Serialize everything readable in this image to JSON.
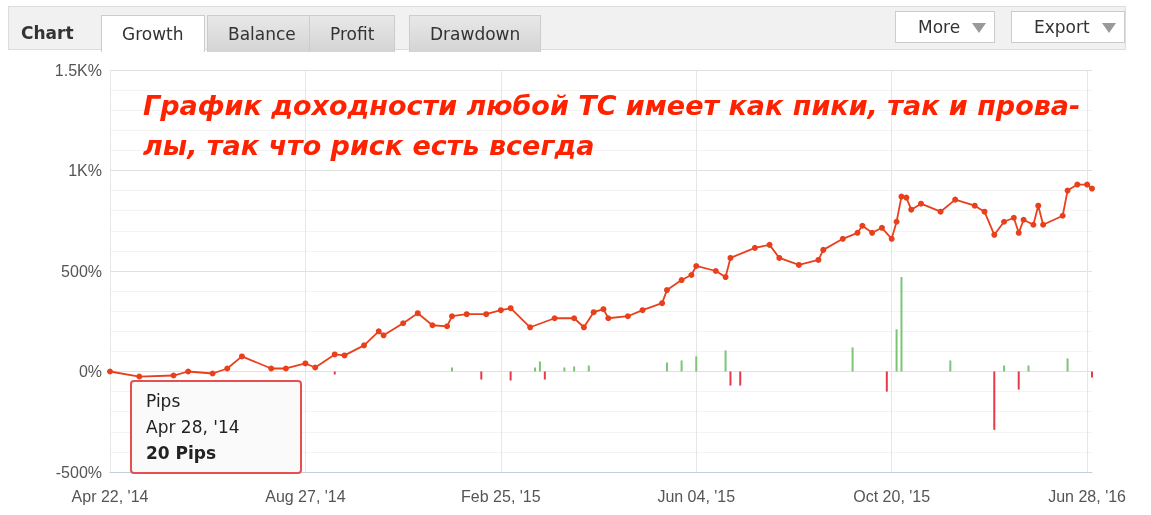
{
  "chart_data": {
    "type": "line",
    "title": "График доходности любой ТС имеет как пики, так и прова-\nлы, так что риск есть всегда",
    "annotations": [
      "Chart",
      "Growth",
      "Balance",
      "Profit",
      "Drawdown",
      "More",
      "Export",
      "Pips",
      "Apr 28, '14",
      "20 Pips"
    ],
    "categories": [
      "Apr 22, '14",
      null,
      null,
      null,
      null,
      null,
      null,
      null,
      null,
      null,
      null,
      null,
      null,
      null,
      null,
      null,
      null,
      null,
      null,
      null,
      null,
      null,
      null,
      null,
      null,
      null,
      null,
      null,
      null,
      null,
      null,
      null,
      null,
      null,
      null,
      null,
      null,
      null,
      null,
      null,
      "Aug 27, '14",
      null,
      null,
      null,
      null,
      null,
      null,
      null,
      null,
      null,
      null,
      null,
      null,
      null,
      null,
      null,
      null,
      null,
      null,
      null,
      null,
      null,
      null,
      null,
      null,
      null,
      null,
      null,
      null,
      null,
      null,
      null,
      null,
      null,
      null,
      null,
      null,
      null,
      null,
      null,
      "Feb 25, '15",
      null,
      null,
      null,
      null,
      null,
      null,
      null,
      null,
      null,
      null,
      null,
      null,
      null,
      null,
      null,
      null,
      null,
      null,
      null,
      null,
      null,
      null,
      null,
      null,
      null,
      null,
      null,
      null,
      null,
      null,
      null,
      null,
      null,
      null,
      null,
      null,
      null,
      null,
      null,
      "Jun 04, '15",
      null,
      null,
      null,
      null,
      null,
      null,
      null,
      null,
      null,
      null,
      null,
      null,
      null,
      null,
      null,
      null,
      null,
      null,
      null,
      null,
      null,
      null,
      null,
      null,
      null,
      null,
      null,
      null,
      null,
      null,
      null,
      null,
      null,
      null,
      null,
      null,
      null,
      null,
      null,
      "Oct 20, '15",
      null,
      null,
      null,
      null,
      null,
      null,
      null,
      null,
      null,
      null,
      null,
      null,
      null,
      null,
      null,
      null,
      null,
      null,
      null,
      null,
      null,
      null,
      null,
      null,
      null,
      null,
      null,
      null,
      null,
      null,
      null,
      null,
      null,
      null,
      null,
      null,
      null,
      null,
      null,
      "Jun 28, '16",
      null
    ],
    "ylim": [
      -500,
      1500
    ],
    "yticks": [
      {
        "value": -500,
        "label": "-500%"
      },
      {
        "value": 0,
        "label": "0%"
      },
      {
        "value": 500,
        "label": "500%"
      },
      {
        "value": 1000,
        "label": "1K%"
      },
      {
        "value": 1500,
        "label": "1.5K%"
      }
    ],
    "grid": true,
    "marker": "circle",
    "line_style": "solid",
    "series": [
      {
        "color": "#e8401c",
        "values": [
          0,
          null,
          null,
          null,
          null,
          null,
          -25,
          null,
          null,
          null,
          null,
          null,
          null,
          -20,
          null,
          null,
          0,
          null,
          null,
          null,
          null,
          -10,
          null,
          null,
          15,
          null,
          null,
          75,
          null,
          null,
          null,
          null,
          null,
          15,
          null,
          null,
          15,
          null,
          null,
          null,
          40,
          null,
          20,
          null,
          null,
          null,
          85,
          null,
          80,
          null,
          null,
          null,
          130,
          null,
          null,
          200,
          180,
          null,
          null,
          null,
          240,
          null,
          null,
          290,
          null,
          null,
          230,
          null,
          null,
          225,
          275,
          null,
          null,
          285,
          null,
          null,
          null,
          285,
          null,
          null,
          305,
          null,
          315,
          null,
          null,
          null,
          220,
          null,
          null,
          null,
          null,
          265,
          null,
          null,
          null,
          265,
          null,
          220,
          null,
          295,
          null,
          310,
          265,
          null,
          null,
          null,
          275,
          null,
          null,
          305,
          null,
          null,
          null,
          340,
          405,
          null,
          null,
          455,
          null,
          480,
          525,
          null,
          null,
          null,
          500,
          null,
          470,
          565,
          null,
          null,
          null,
          null,
          615,
          null,
          null,
          630,
          null,
          565,
          null,
          null,
          null,
          530,
          null,
          null,
          null,
          555,
          605,
          null,
          null,
          null,
          660,
          null,
          null,
          690,
          725,
          null,
          690,
          null,
          715,
          null,
          660,
          745,
          870,
          865,
          805,
          null,
          835,
          null,
          null,
          null,
          795,
          null,
          null,
          855,
          null,
          null,
          null,
          825,
          null,
          795,
          null,
          680,
          null,
          745,
          null,
          765,
          690,
          755,
          null,
          730,
          825,
          730,
          null,
          null,
          null,
          775,
          900,
          null,
          930,
          null,
          930,
          910
        ]
      },
      {
        "type": "bar",
        "color": "#7cc576",
        "values": [
          null,
          null,
          null,
          null,
          null,
          null,
          null,
          null,
          null,
          null,
          null,
          null,
          null,
          null,
          null,
          null,
          null,
          null,
          null,
          null,
          null,
          null,
          null,
          null,
          null,
          null,
          null,
          null,
          null,
          null,
          null,
          null,
          null,
          null,
          null,
          null,
          null,
          null,
          null,
          null,
          null,
          null,
          null,
          null,
          null,
          null,
          null,
          null,
          null,
          null,
          null,
          null,
          null,
          null,
          null,
          null,
          null,
          null,
          null,
          null,
          null,
          null,
          null,
          null,
          null,
          null,
          null,
          null,
          null,
          null,
          20,
          null,
          null,
          null,
          null,
          null,
          null,
          null,
          null,
          null,
          null,
          null,
          null,
          null,
          null,
          null,
          null,
          20,
          50,
          null,
          null,
          null,
          null,
          20,
          null,
          25,
          null,
          null,
          30,
          null,
          null,
          null,
          null,
          null,
          null,
          null,
          null,
          null,
          null,
          null,
          null,
          null,
          null,
          null,
          45,
          null,
          null,
          55,
          null,
          null,
          75,
          null,
          null,
          null,
          null,
          null,
          105,
          null,
          null,
          null,
          null,
          null,
          null,
          null,
          null,
          null,
          null,
          null,
          null,
          null,
          null,
          null,
          null,
          null,
          null,
          null,
          null,
          null,
          null,
          null,
          null,
          null,
          120,
          null,
          null,
          null,
          null,
          null,
          null,
          null,
          null,
          210,
          470,
          null,
          null,
          null,
          null,
          null,
          null,
          null,
          null,
          null,
          55,
          null,
          null,
          null,
          null,
          null,
          null,
          null,
          null,
          null,
          null,
          30,
          null,
          null,
          null,
          null,
          30,
          null,
          null,
          null,
          null,
          null,
          null,
          null,
          65,
          null,
          null,
          null,
          null,
          null
        ]
      },
      {
        "type": "bar",
        "color": "#e8394a",
        "values": [
          null,
          null,
          null,
          null,
          null,
          null,
          null,
          null,
          null,
          null,
          null,
          null,
          null,
          null,
          null,
          null,
          null,
          null,
          null,
          null,
          null,
          null,
          null,
          null,
          null,
          null,
          null,
          null,
          null,
          null,
          null,
          null,
          null,
          null,
          null,
          null,
          null,
          null,
          null,
          null,
          null,
          null,
          null,
          null,
          null,
          null,
          -15,
          null,
          null,
          null,
          null,
          null,
          null,
          null,
          null,
          null,
          null,
          null,
          null,
          null,
          null,
          null,
          null,
          null,
          null,
          null,
          null,
          null,
          null,
          null,
          null,
          null,
          null,
          null,
          null,
          null,
          -40,
          null,
          null,
          null,
          null,
          null,
          -45,
          null,
          null,
          null,
          null,
          null,
          null,
          -40,
          null,
          null,
          null,
          null,
          null,
          null,
          null,
          null,
          null,
          null,
          null,
          null,
          null,
          null,
          null,
          null,
          null,
          null,
          null,
          null,
          null,
          null,
          null,
          null,
          null,
          null,
          null,
          null,
          null,
          null,
          null,
          null,
          null,
          null,
          null,
          null,
          null,
          -70,
          null,
          -70,
          null,
          null,
          null,
          null,
          null,
          null,
          null,
          null,
          null,
          null,
          null,
          null,
          null,
          null,
          null,
          null,
          null,
          null,
          null,
          null,
          null,
          null,
          null,
          null,
          null,
          null,
          null,
          null,
          null,
          -100,
          null,
          null,
          null,
          null,
          null,
          null,
          null,
          null,
          null,
          null,
          null,
          null,
          null,
          null,
          null,
          null,
          null,
          null,
          null,
          null,
          null,
          -290,
          null,
          null,
          null,
          null,
          -90,
          null,
          null,
          null,
          null,
          null,
          null,
          null,
          null,
          null,
          null,
          null,
          null,
          null,
          null,
          -30
        ]
      }
    ]
  }
}
